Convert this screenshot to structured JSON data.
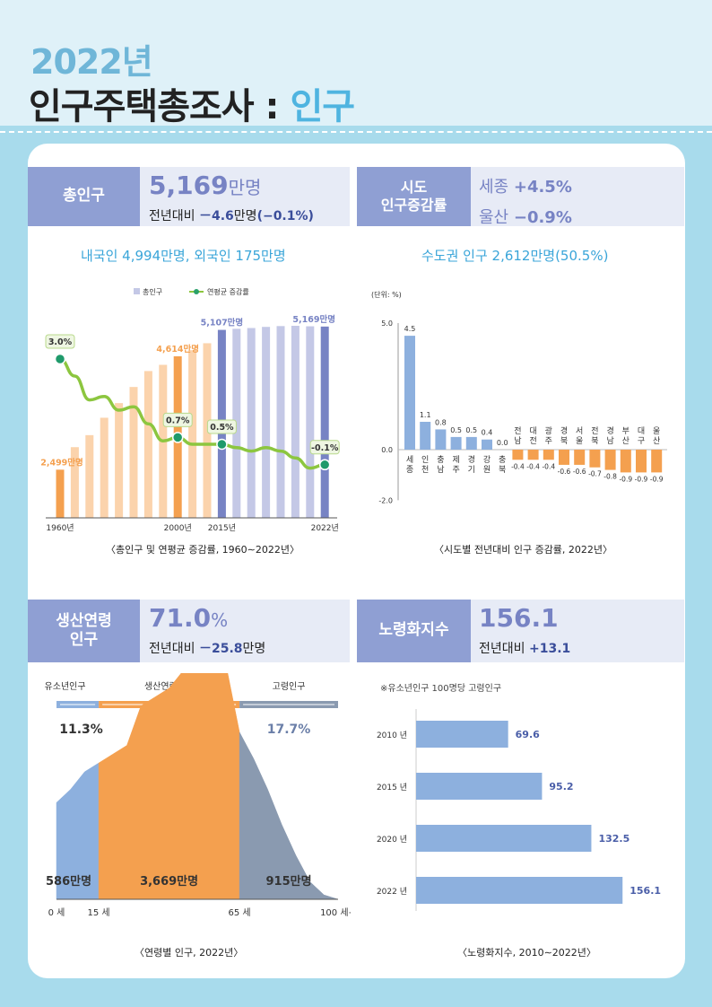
{
  "header": {
    "year": "2022년",
    "title_main": "인구주택총조사 : ",
    "title_accent": "인구"
  },
  "total_population": {
    "label": "총인구",
    "value": "5,169",
    "unit": "만명",
    "change_label": "전년대비",
    "change_value": "－4.6",
    "change_unit": "만명",
    "change_rate": "(−0.1%)",
    "headline": "내국인 4,994만명, 외국인 175만명",
    "caption": "〈총인구 및 연평균 증감률, 1960∼2022년〉"
  },
  "region": {
    "label_line1": "시도",
    "label_line2": "인구증감률",
    "top1_name": "세종",
    "top1_value": "+4.5%",
    "top2_name": "울산",
    "top2_value": "−0.9%",
    "headline": "수도권 인구 2,612만명(50.5%)",
    "caption": "〈시도별 전년대비 인구 증감률, 2022년〉"
  },
  "working_age": {
    "label_line1": "생산연령",
    "label_line2": "인구",
    "value": "71.0",
    "unit": "%",
    "change_label": "전년대비",
    "change_value": "－25.8",
    "change_unit": "만명",
    "groups": [
      "유소년인구",
      "생산연령인구",
      "고령인구"
    ],
    "shares": [
      "11.3%",
      "71.0%",
      "17.7%"
    ],
    "counts": [
      "586만명",
      "3,669만명",
      "915만명"
    ],
    "ages": [
      "0 세",
      "15 세",
      "65 세",
      "100 세+"
    ],
    "caption": "〈연령별 인구, 2022년〉"
  },
  "aging_index": {
    "label": "노령화지수",
    "value": "156.1",
    "change_label": "전년대비",
    "change_value": "+13.1",
    "note": "※유소년인구 100명당 고령인구",
    "caption": "〈노령화지수, 2010∼2022년〉"
  },
  "colors": {
    "orange": "#f4a04f",
    "light_orange": "#fbd3ac",
    "purple": "#7783c4",
    "light_purple": "#c4c8e6",
    "green": "#8cc63f",
    "blue": "#8db0de",
    "gray_blue": "#8a9ab0"
  },
  "chart_data": [
    {
      "type": "bar",
      "title": "〈총인구 및 연평균 증감률, 1960∼2022년〉",
      "legend": [
        "총인구",
        "연평균 증감률"
      ],
      "x_tick_labels": [
        "1960년",
        "2000년",
        "2015년",
        "2022년"
      ],
      "series": [
        {
          "name": "총인구",
          "unit": "만명",
          "x": [
            1960,
            1966,
            1970,
            1975,
            1980,
            1985,
            1990,
            1995,
            2000,
            2005,
            2010,
            2015,
            2016,
            2017,
            2018,
            2019,
            2020,
            2021,
            2022
          ],
          "values": [
            2499,
            2919,
            3143,
            3468,
            3741,
            4042,
            4339,
            4455,
            4614,
            4728,
            4858,
            5107,
            5127,
            5142,
            5163,
            5178,
            5183,
            5174,
            5169
          ]
        },
        {
          "name": "연평균 증감률",
          "unit": "%",
          "x": [
            1960,
            1966,
            1970,
            1975,
            1980,
            1985,
            1990,
            1995,
            2000,
            2005,
            2010,
            2015,
            2016,
            2017,
            2018,
            2019,
            2020,
            2021,
            2022
          ],
          "values": [
            3.0,
            2.5,
            1.8,
            1.9,
            1.5,
            1.6,
            1.1,
            0.6,
            0.7,
            0.5,
            0.5,
            0.5,
            0.4,
            0.3,
            0.4,
            0.3,
            0.1,
            -0.2,
            -0.1
          ]
        }
      ],
      "labeled_points": [
        {
          "x": 1960,
          "population": "2,499만명",
          "rate": "3.0%"
        },
        {
          "x": 2000,
          "population": "4,614만명",
          "rate": "0.7%"
        },
        {
          "x": 2015,
          "population": "5,107만명",
          "rate": "0.5%"
        },
        {
          "x": 2022,
          "population": "5,169만명",
          "rate": "-0.1%"
        }
      ]
    },
    {
      "type": "bar",
      "title": "〈시도별 전년대비 인구 증감률, 2022년〉",
      "unit_label": "(단위: %)",
      "ylim": [
        -2.0,
        5.0
      ],
      "y_ticks": [
        "5.0",
        "0.0",
        "-2.0"
      ],
      "categories": [
        [
          "세",
          "종"
        ],
        [
          "인",
          "천"
        ],
        [
          "충",
          "남"
        ],
        [
          "제",
          "주"
        ],
        [
          "경",
          "기"
        ],
        [
          "강",
          "원"
        ],
        [
          "충",
          "북"
        ],
        [
          "전",
          "남"
        ],
        [
          "대",
          "전"
        ],
        [
          "광",
          "주"
        ],
        [
          "경",
          "북"
        ],
        [
          "서",
          "울"
        ],
        [
          "전",
          "북"
        ],
        [
          "경",
          "남"
        ],
        [
          "부",
          "산"
        ],
        [
          "대",
          "구"
        ],
        [
          "울",
          "산"
        ]
      ],
      "values": [
        4.5,
        1.1,
        0.8,
        0.5,
        0.5,
        0.4,
        0.0,
        -0.4,
        -0.4,
        -0.4,
        -0.6,
        -0.6,
        -0.7,
        -0.8,
        -0.9,
        -0.9,
        -0.9
      ],
      "value_labels": [
        "4.5",
        "1.1",
        "0.8",
        "0.5",
        "0.5",
        "0.4",
        "0.0",
        "-0.4",
        "-0.4",
        "-0.4",
        "-0.6",
        "-0.6",
        "-0.7",
        "-0.8",
        "-0.9",
        "-0.9",
        "-0.9"
      ]
    },
    {
      "type": "area",
      "title": "〈연령별 인구, 2022년〉",
      "x": [
        0,
        5,
        10,
        15,
        20,
        25,
        30,
        35,
        40,
        45,
        50,
        55,
        60,
        65,
        70,
        75,
        80,
        85,
        90,
        95,
        100
      ],
      "values": [
        22,
        25,
        29,
        31,
        33,
        35,
        44,
        46,
        48,
        52,
        56,
        56,
        54,
        38,
        32,
        25,
        17,
        10,
        4,
        1,
        0
      ],
      "groups": [
        {
          "name": "유소년인구",
          "range": [
            0,
            15
          ],
          "count": "586만명",
          "share": "11.3%"
        },
        {
          "name": "생산연령인구",
          "range": [
            15,
            65
          ],
          "count": "3,669만명",
          "share": "71.0%"
        },
        {
          "name": "고령인구",
          "range": [
            65,
            100
          ],
          "count": "915만명",
          "share": "17.7%"
        }
      ]
    },
    {
      "type": "bar",
      "orientation": "horizontal",
      "title": "〈노령화지수, 2010∼2022년〉",
      "categories": [
        "2010 년",
        "2015 년",
        "2020 년",
        "2022 년"
      ],
      "values": [
        69.6,
        95.2,
        132.5,
        156.1
      ],
      "value_labels": [
        "69.6",
        "95.2",
        "132.5",
        "156.1"
      ],
      "xlim": [
        0,
        160
      ]
    }
  ]
}
